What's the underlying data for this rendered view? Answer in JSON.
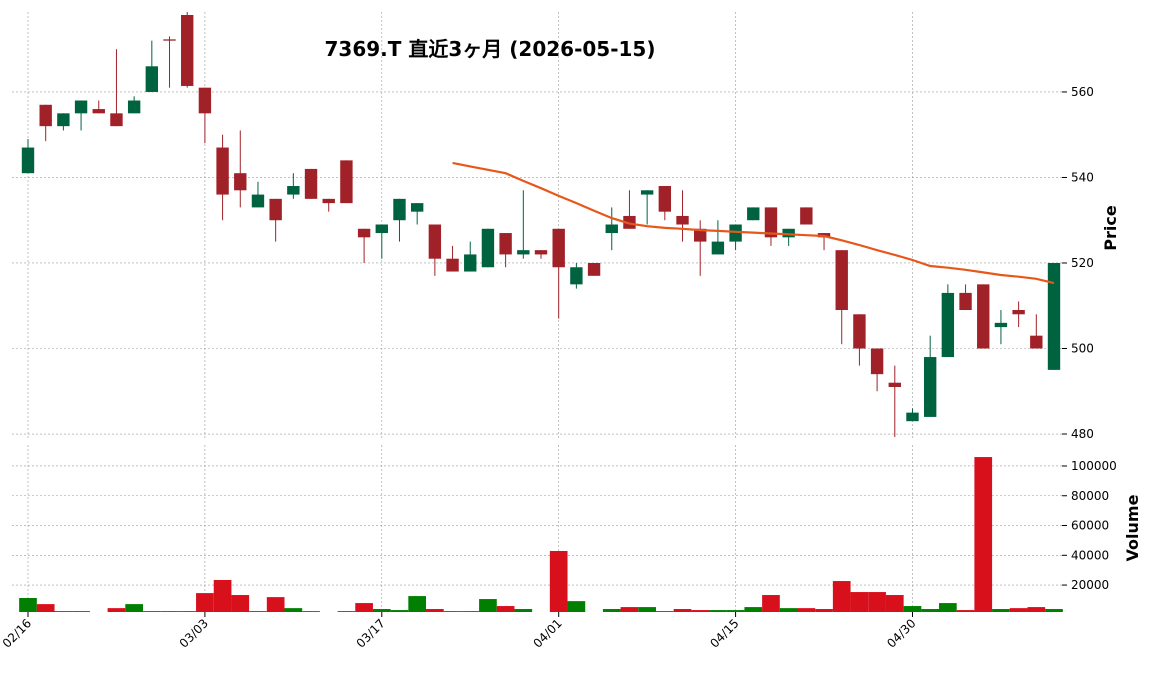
{
  "chart_data": {
    "type": "candlestick",
    "title": "7369.T  直近3ヶ月  (2026-05-15)",
    "categories": [
      "02/16",
      null,
      null,
      null,
      null,
      null,
      null,
      null,
      null,
      null,
      "03/03",
      null,
      null,
      null,
      null,
      null,
      null,
      null,
      null,
      null,
      "03/17",
      null,
      null,
      null,
      null,
      null,
      null,
      null,
      null,
      null,
      "04/01",
      null,
      null,
      null,
      null,
      null,
      null,
      null,
      null,
      null,
      "04/15",
      null,
      null,
      null,
      null,
      null,
      null,
      null,
      null,
      null,
      "04/30",
      null,
      null,
      null,
      null,
      null,
      null,
      null,
      null
    ],
    "open": [
      541,
      557,
      552,
      555,
      556,
      555,
      555,
      560,
      572.3,
      578,
      561,
      547,
      541,
      533,
      535,
      536,
      542,
      535,
      544,
      528,
      527,
      530,
      532,
      529,
      521,
      518,
      519,
      527,
      522,
      523,
      528,
      515,
      520,
      527,
      531,
      536,
      538,
      531,
      528,
      522,
      525,
      530,
      533,
      526,
      533,
      527,
      523,
      508,
      500,
      492,
      483,
      484,
      498,
      513,
      515,
      505,
      509,
      503,
      495
    ],
    "high": [
      549,
      557,
      555,
      558,
      558,
      570,
      559,
      572,
      573,
      580,
      561,
      550,
      551,
      539,
      535,
      541,
      542,
      535,
      544,
      528,
      529,
      535,
      534,
      529,
      524,
      525,
      528,
      527,
      537,
      523,
      528,
      520,
      520,
      533,
      537,
      537,
      538,
      537,
      530,
      530,
      529,
      533,
      533,
      528,
      533,
      527,
      523,
      508,
      500,
      496,
      486,
      503,
      515,
      515,
      515,
      509,
      511,
      508,
      520
    ],
    "low": [
      541,
      548.5,
      551,
      551,
      555,
      552,
      555,
      560,
      561,
      561,
      548,
      530,
      533,
      533,
      525,
      535,
      535,
      532,
      534,
      520,
      521,
      525,
      529,
      517,
      518,
      518,
      519,
      519,
      521,
      521,
      507,
      514,
      517,
      523,
      528,
      529,
      530,
      525,
      517,
      522,
      523,
      530,
      524,
      524,
      529,
      523,
      501,
      496,
      490,
      479.3,
      483,
      484,
      498,
      509,
      500,
      501,
      505,
      500,
      495
    ],
    "close": [
      547,
      552,
      555,
      558,
      555,
      552,
      558,
      566,
      572,
      561.4,
      555,
      536,
      537,
      536,
      530,
      538,
      535,
      534,
      534,
      526,
      529,
      535,
      534,
      521,
      518,
      522,
      528,
      522,
      523,
      522,
      519,
      519,
      517,
      529,
      528,
      537,
      532,
      529,
      525,
      525,
      529,
      533,
      526,
      528,
      529,
      526,
      509,
      500,
      494,
      491,
      485,
      498,
      513,
      509,
      500,
      506,
      508,
      500,
      520
    ],
    "colors": {
      "up": "#006340",
      "down": "#a02128"
    },
    "ylim": [
      478.6,
      578.7
    ],
    "yticks": [
      480,
      500,
      520,
      540,
      560
    ],
    "ylabel": "Price",
    "grid": true,
    "ma": {
      "color": "#e8571a",
      "values": [
        null,
        null,
        null,
        null,
        null,
        null,
        null,
        null,
        null,
        null,
        null,
        null,
        null,
        null,
        null,
        null,
        null,
        null,
        null,
        null,
        null,
        null,
        null,
        null,
        543.4,
        542.6,
        541.8,
        541.0,
        539.2,
        537.5,
        535.7,
        534.0,
        532.2,
        530.5,
        529.2,
        528.6,
        528.2,
        528.0,
        527.7,
        527.5,
        527.3,
        527.1,
        526.9,
        526.7,
        526.5,
        526.3,
        525.3,
        524.2,
        523.0,
        521.9,
        520.7,
        519.3,
        518.9,
        518.4,
        517.8,
        517.2,
        516.8,
        516.3,
        515.3
      ]
    },
    "volume": {
      "values": [
        11300,
        7200,
        2500,
        2500,
        1900,
        4500,
        7200,
        2500,
        2500,
        2500,
        14600,
        23400,
        13300,
        2500,
        11900,
        4500,
        2500,
        1900,
        2500,
        7900,
        3900,
        3200,
        12600,
        3900,
        2500,
        2500,
        10600,
        5900,
        3900,
        1900,
        42900,
        9200,
        1900,
        3900,
        5200,
        5200,
        2500,
        3900,
        3200,
        3200,
        3200,
        5200,
        13300,
        4500,
        4500,
        3900,
        22700,
        15300,
        15300,
        13300,
        5900,
        3900,
        7900,
        3200,
        106000,
        3900,
        4500,
        5200,
        3900
      ],
      "ylim": [
        1900,
        114100
      ],
      "yticks": [
        20000,
        40000,
        60000,
        80000,
        100000
      ],
      "ylabel": "Volume",
      "colors": {
        "up": "#007f00",
        "down": "#d8101c"
      }
    }
  }
}
